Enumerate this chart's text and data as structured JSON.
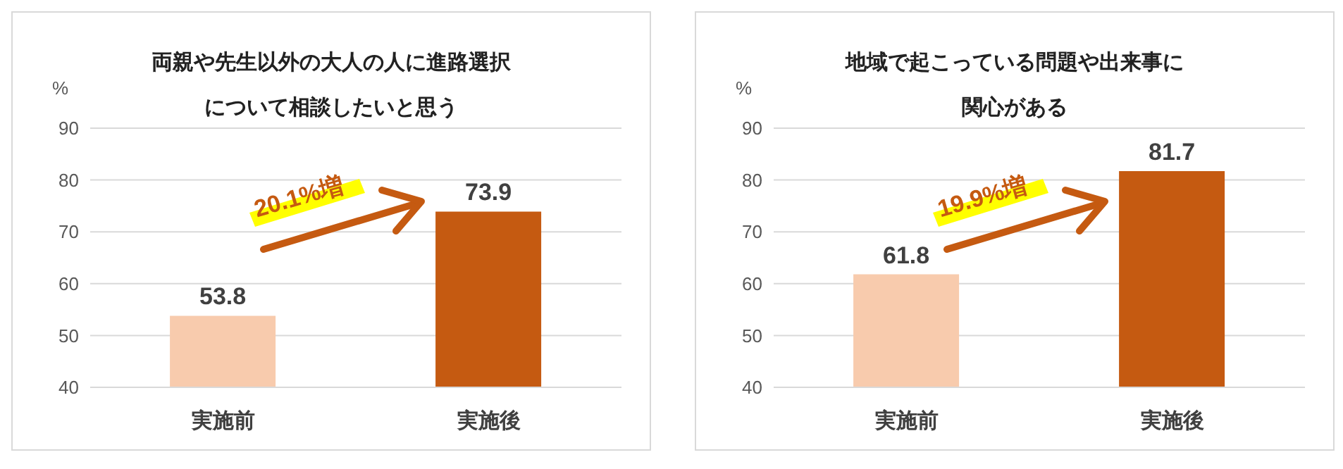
{
  "chart_data": [
    {
      "type": "bar",
      "title": "両親や先生以外の大人の人に進路選択について相談したいと思う",
      "ylabel": "%",
      "categories": [
        "実施前",
        "実施後"
      ],
      "values": [
        53.8,
        73.9
      ],
      "colors": [
        "#f8cbad",
        "#c55a11"
      ],
      "ylim": [
        40,
        90
      ],
      "yticks": [
        40,
        50,
        60,
        70,
        80,
        90
      ],
      "grid": "y",
      "data_labels": true,
      "annotations": [
        "20.1%増"
      ]
    },
    {
      "type": "bar",
      "title": "地域で起こっている問題や出来事に関心がある",
      "ylabel": "%",
      "categories": [
        "実施前",
        "実施後"
      ],
      "values": [
        61.8,
        81.7
      ],
      "colors": [
        "#f8cbad",
        "#c55a11"
      ],
      "ylim": [
        40,
        90
      ],
      "yticks": [
        40,
        50,
        60,
        70,
        80,
        90
      ],
      "grid": "y",
      "data_labels": true,
      "annotations": [
        "19.9%増"
      ]
    }
  ]
}
